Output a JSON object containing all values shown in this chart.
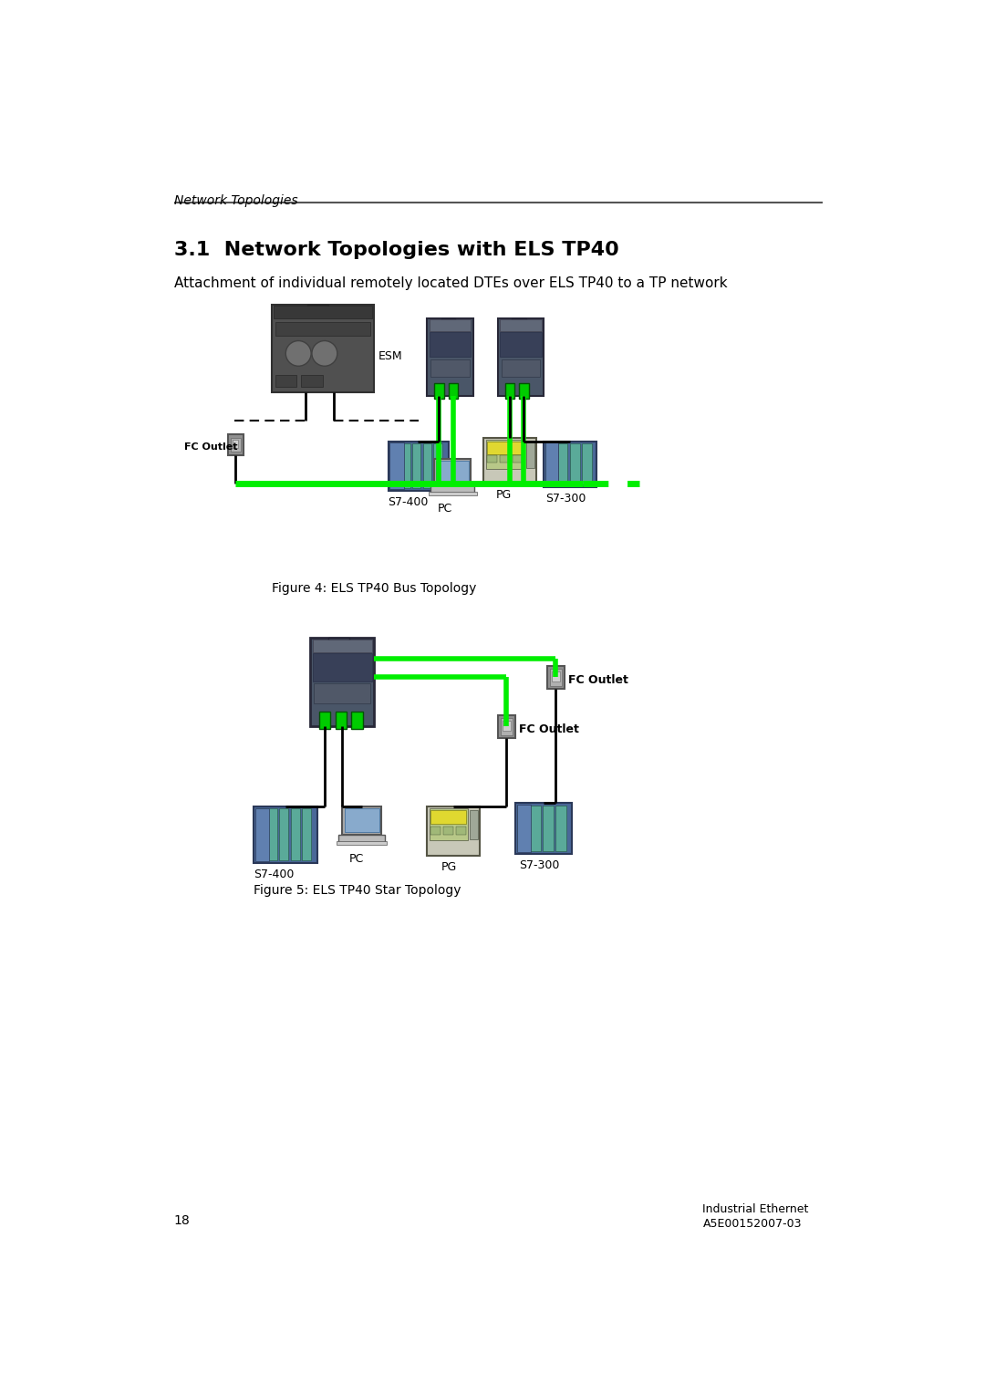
{
  "page_title": "Network Topologies",
  "section_number": "3.1",
  "section_title": "Network Topologies with ELS TP40",
  "subtitle": "Attachment of individual remotely located DTEs over ELS TP40 to a TP network",
  "fig4_caption": "Figure 4: ELS TP40 Bus Topology",
  "fig5_caption": "Figure 5: ELS TP40 Star Topology",
  "page_number": "18",
  "footer_right1": "Industrial Ethernet",
  "footer_right2": "A5E00152007-03",
  "bg_color": "#ffffff",
  "text_color": "#000000",
  "green_color": "#00ee00",
  "header_line_color": "#555555",
  "esm_body": "#555555",
  "esm_dark": "#333333",
  "els_body": "#4a5668",
  "els_top": "#3a4050",
  "els_label": "#8090a0",
  "els_green": "#00dd00",
  "s7400_body": "#5575aa",
  "s7400_stripe": "#88aabb",
  "s7400_teal": "#5aaa99",
  "s7300_body": "#5575aa",
  "s7300_stripe": "#88aabb",
  "pg_body": "#d0d0c0",
  "pg_screen": "#b0c890",
  "pg_yellow": "#e8e050",
  "pc_body": "#aaaaaa",
  "pc_screen": "#88aacc",
  "fco_body": "#999999",
  "cable_black": "#000000"
}
